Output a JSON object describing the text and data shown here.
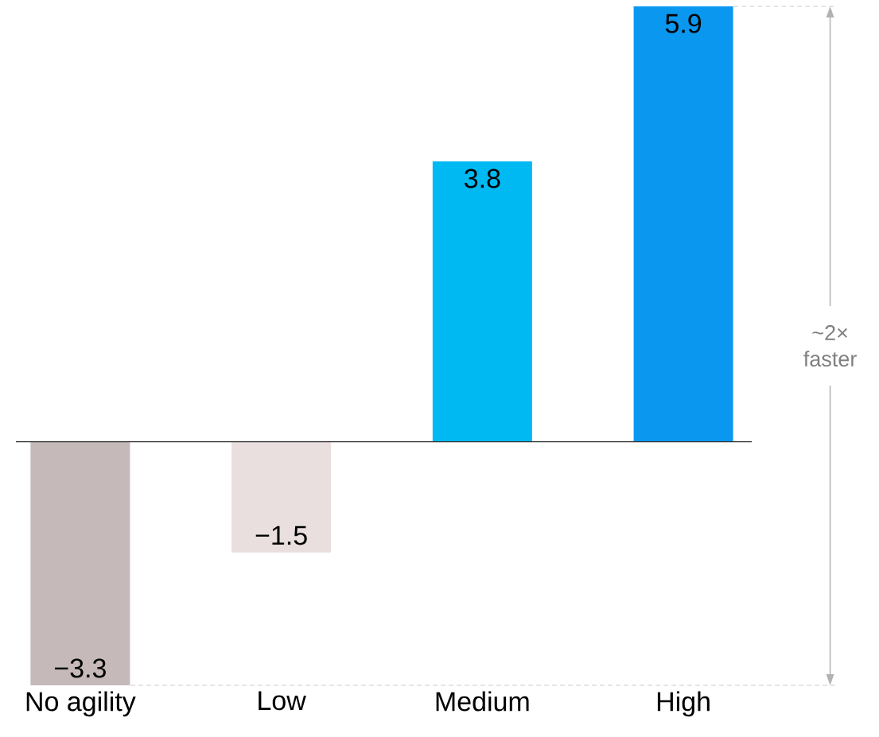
{
  "chart_data": {
    "type": "bar",
    "categories": [
      "No agility",
      "Low",
      "Medium",
      "High"
    ],
    "values": [
      -3.3,
      -1.5,
      3.8,
      5.9
    ],
    "value_labels": [
      "−3.3",
      "−1.5",
      "3.8",
      "5.9"
    ],
    "colors": [
      "#c5b9b9",
      "#e9dfdf",
      "#00b9f2",
      "#0a97ef"
    ],
    "annotations": [
      "~2× faster"
    ]
  }
}
